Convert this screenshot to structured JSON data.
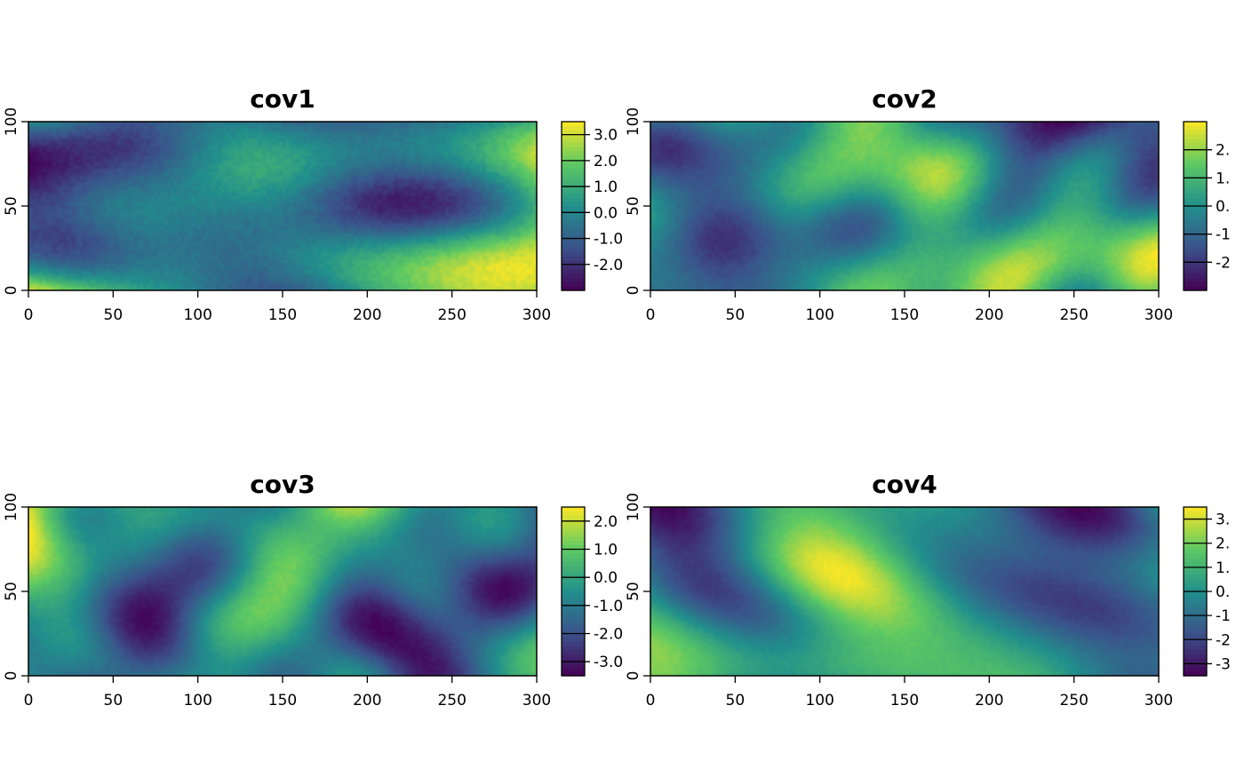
{
  "chart_data": [
    {
      "type": "heatmap",
      "title": "cov1",
      "xlim": [
        0,
        300
      ],
      "ylim": [
        0,
        100
      ],
      "x_ticks": [
        "0",
        "50",
        "100",
        "150",
        "200",
        "250",
        "300"
      ],
      "y_ticks": [
        "0",
        "50",
        "100"
      ],
      "colorbar": {
        "range": [
          -3.0,
          3.5
        ],
        "ticks": [
          "3.0",
          "2.0",
          "1.0",
          "0.0",
          "-1.0",
          "-2.0"
        ]
      },
      "colormap": [
        "#440154",
        "#3b528b",
        "#21908c",
        "#5dc963",
        "#fde725"
      ],
      "seed": 11
    },
    {
      "type": "heatmap",
      "title": "cov2",
      "xlim": [
        0,
        300
      ],
      "ylim": [
        0,
        100
      ],
      "x_ticks": [
        "0",
        "50",
        "100",
        "150",
        "200",
        "250",
        "300"
      ],
      "y_ticks": [
        "0",
        "50",
        "100"
      ],
      "colorbar": {
        "range": [
          -3.0,
          3.0
        ],
        "ticks": [
          "2.",
          "1.",
          "0.",
          "-1",
          "-2"
        ]
      },
      "colormap": [
        "#440154",
        "#3b528b",
        "#21908c",
        "#5dc963",
        "#fde725"
      ],
      "seed": 23
    },
    {
      "type": "heatmap",
      "title": "cov3",
      "xlim": [
        0,
        300
      ],
      "ylim": [
        0,
        100
      ],
      "x_ticks": [
        "0",
        "50",
        "100",
        "150",
        "200",
        "250",
        "300"
      ],
      "y_ticks": [
        "0",
        "50",
        "100"
      ],
      "colorbar": {
        "range": [
          -3.5,
          2.5
        ],
        "ticks": [
          "2.0",
          "1.0",
          "0.0",
          "-1.0",
          "-2.0",
          "-3.0"
        ]
      },
      "colormap": [
        "#440154",
        "#3b528b",
        "#21908c",
        "#5dc963",
        "#fde725"
      ],
      "seed": 37
    },
    {
      "type": "heatmap",
      "title": "cov4",
      "xlim": [
        0,
        300
      ],
      "ylim": [
        0,
        100
      ],
      "x_ticks": [
        "0",
        "50",
        "100",
        "150",
        "200",
        "250",
        "300"
      ],
      "y_ticks": [
        "0",
        "50",
        "100"
      ],
      "colorbar": {
        "range": [
          -3.5,
          3.5
        ],
        "ticks": [
          "3.",
          "2.",
          "1.",
          "0.",
          "-1",
          "-2",
          "-3"
        ]
      },
      "colormap": [
        "#440154",
        "#3b528b",
        "#21908c",
        "#5dc963",
        "#fde725"
      ],
      "seed": 51
    }
  ]
}
